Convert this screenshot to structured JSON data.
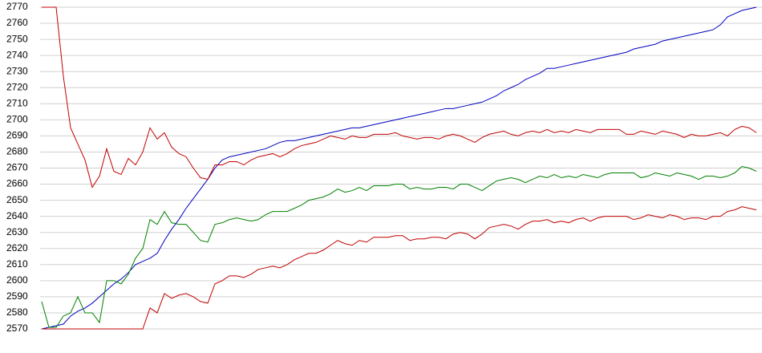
{
  "chart_data": {
    "type": "line",
    "ylim": [
      2570,
      2770
    ],
    "yticks": [
      2570,
      2580,
      2590,
      2600,
      2610,
      2620,
      2630,
      2640,
      2650,
      2660,
      2670,
      2680,
      2690,
      2700,
      2710,
      2720,
      2730,
      2740,
      2750,
      2760,
      2770
    ],
    "grid": true,
    "series": [
      {
        "color": "#0000c0",
        "values": [
          2570,
          2571,
          2572,
          2573,
          2578,
          2581,
          2583,
          2586,
          2590,
          2594,
          2598,
          2601,
          2605,
          2610,
          2612,
          2614,
          2617,
          2625,
          2632,
          2638,
          2645,
          2651,
          2657,
          2663,
          2670,
          2675,
          2677,
          2678,
          2679,
          2680,
          2681,
          2682,
          2684,
          2686,
          2687,
          2687,
          2688,
          2689,
          2690,
          2691,
          2692,
          2693,
          2694,
          2695,
          2695,
          2696,
          2697,
          2698,
          2699,
          2700,
          2701,
          2702,
          2703,
          2704,
          2705,
          2706,
          2707,
          2707,
          2708,
          2709,
          2710,
          2711,
          2713,
          2715,
          2718,
          2720,
          2722,
          2725,
          2727,
          2729,
          2732,
          2732,
          2733,
          2734,
          2735,
          2736,
          2737,
          2738,
          2739,
          2740,
          2741,
          2742,
          2744,
          2745,
          2746,
          2747,
          2749,
          2750,
          2751,
          2752,
          2753,
          2754,
          2755,
          2756,
          2759,
          2764,
          2766,
          2768,
          2769,
          2770
        ]
      },
      {
        "color": "#c00000",
        "values": [
          2770,
          2770,
          2770,
          2727,
          2695,
          2685,
          2675,
          2658,
          2665,
          2682,
          2668,
          2666,
          2676,
          2672,
          2680,
          2695,
          2688,
          2692,
          2683,
          2679,
          2677,
          2670,
          2664,
          2663,
          2672,
          2672,
          2674,
          2674,
          2672,
          2675,
          2677,
          2678,
          2679,
          2677,
          2679,
          2682,
          2684,
          2685,
          2686,
          2688,
          2690,
          2689,
          2688,
          2690,
          2689,
          2689,
          2691,
          2691,
          2691,
          2692,
          2690,
          2689,
          2688,
          2689,
          2689,
          2688,
          2690,
          2691,
          2690,
          2688,
          2686,
          2689,
          2691,
          2692,
          2693,
          2691,
          2690,
          2692,
          2693,
          2692,
          2694,
          2692,
          2693,
          2692,
          2694,
          2693,
          2692,
          2694,
          2694,
          2694,
          2694,
          2691,
          2691,
          2693,
          2692,
          2691,
          2693,
          2692,
          2691,
          2689,
          2691,
          2690,
          2690,
          2691,
          2692,
          2690,
          2694,
          2696,
          2695,
          2692
        ]
      },
      {
        "color": "#008000",
        "values": [
          2587,
          2571,
          2571,
          2578,
          2580,
          2590,
          2580,
          2580,
          2574,
          2600,
          2600,
          2598,
          2604,
          2614,
          2620,
          2638,
          2635,
          2643,
          2636,
          2635,
          2635,
          2630,
          2625,
          2624,
          2635,
          2636,
          2638,
          2639,
          2638,
          2637,
          2638,
          2641,
          2643,
          2643,
          2643,
          2645,
          2647,
          2650,
          2651,
          2652,
          2654,
          2657,
          2655,
          2656,
          2658,
          2656,
          2659,
          2659,
          2659,
          2660,
          2660,
          2657,
          2658,
          2657,
          2657,
          2658,
          2658,
          2657,
          2660,
          2660,
          2658,
          2656,
          2659,
          2662,
          2663,
          2664,
          2663,
          2661,
          2663,
          2665,
          2664,
          2666,
          2664,
          2665,
          2664,
          2666,
          2665,
          2664,
          2666,
          2667,
          2667,
          2667,
          2667,
          2664,
          2665,
          2667,
          2666,
          2665,
          2667,
          2666,
          2665,
          2663,
          2665,
          2665,
          2664,
          2665,
          2667,
          2671,
          2670,
          2668
        ]
      },
      {
        "color": "#c00000",
        "values": [
          2570,
          2570,
          2570,
          2570,
          2570,
          2570,
          2570,
          2570,
          2570,
          2570,
          2570,
          2570,
          2570,
          2570,
          2570,
          2583,
          2580,
          2592,
          2589,
          2591,
          2592,
          2590,
          2587,
          2586,
          2598,
          2600,
          2603,
          2603,
          2602,
          2604,
          2607,
          2608,
          2609,
          2608,
          2610,
          2613,
          2615,
          2617,
          2617,
          2619,
          2622,
          2625,
          2623,
          2622,
          2625,
          2624,
          2627,
          2627,
          2627,
          2628,
          2628,
          2625,
          2626,
          2626,
          2627,
          2627,
          2626,
          2629,
          2630,
          2629,
          2626,
          2629,
          2633,
          2634,
          2635,
          2634,
          2632,
          2635,
          2637,
          2637,
          2638,
          2636,
          2637,
          2636,
          2638,
          2639,
          2637,
          2639,
          2640,
          2640,
          2640,
          2640,
          2638,
          2639,
          2641,
          2640,
          2639,
          2641,
          2640,
          2638,
          2639,
          2639,
          2638,
          2640,
          2640,
          2643,
          2644,
          2646,
          2645,
          2644
        ]
      }
    ]
  }
}
